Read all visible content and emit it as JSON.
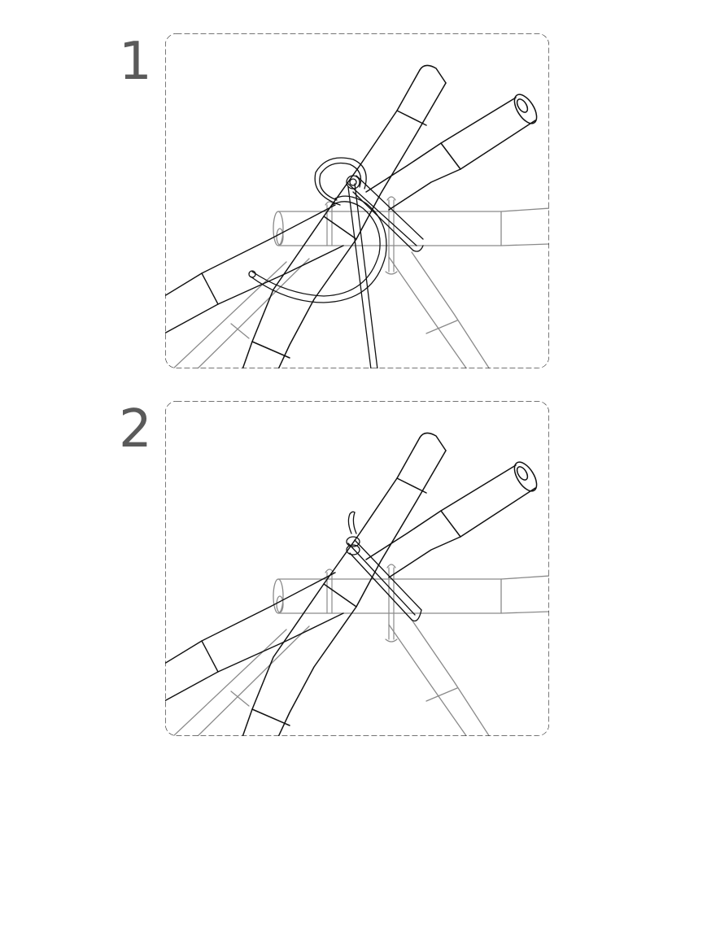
{
  "steps": [
    {
      "number": "1"
    },
    {
      "number": "2"
    }
  ],
  "colors": {
    "line_dark": "#111111",
    "line_light": "#8a8a8a",
    "frame": "#222222",
    "step_number": "#5a5a5a"
  }
}
